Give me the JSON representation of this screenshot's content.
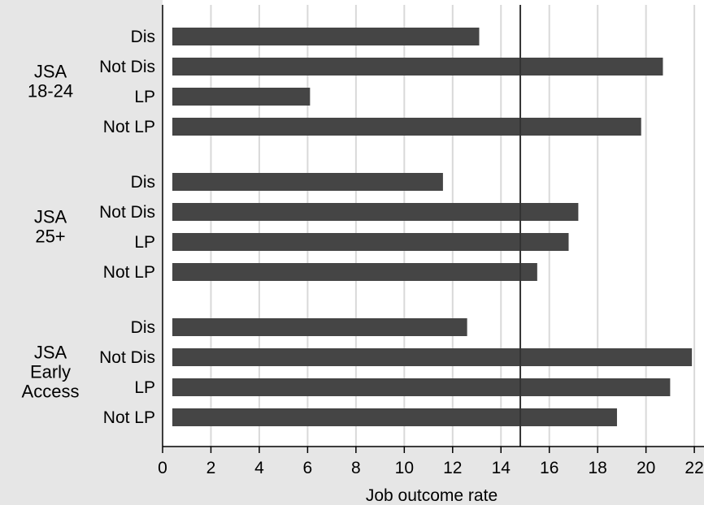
{
  "chart_data": {
    "type": "bar",
    "orientation": "horizontal",
    "title": "",
    "xlabel": "Job outcome rate",
    "ylabel": "",
    "xlim": [
      0,
      22.4
    ],
    "xticks": [
      0,
      2,
      4,
      6,
      8,
      10,
      12,
      14,
      16,
      18,
      20,
      22
    ],
    "grid": true,
    "reference_line": 14.8,
    "groups": [
      {
        "label_lines": [
          "JSA",
          "18-24"
        ],
        "bars": [
          {
            "label": "Dis",
            "value": 13.1
          },
          {
            "label": "Not Dis",
            "value": 20.7
          },
          {
            "label": "LP",
            "value": 6.1
          },
          {
            "label": "Not LP",
            "value": 19.8
          }
        ]
      },
      {
        "label_lines": [
          "JSA",
          "25+"
        ],
        "bars": [
          {
            "label": "Dis",
            "value": 11.6
          },
          {
            "label": "Not Dis",
            "value": 17.2
          },
          {
            "label": "LP",
            "value": 16.8
          },
          {
            "label": "Not LP",
            "value": 15.5
          }
        ]
      },
      {
        "label_lines": [
          "JSA",
          "Early",
          "Access"
        ],
        "bars": [
          {
            "label": "Dis",
            "value": 12.6
          },
          {
            "label": "Not Dis",
            "value": 21.9
          },
          {
            "label": "LP",
            "value": 21.0
          },
          {
            "label": "Not LP",
            "value": 18.8
          }
        ]
      }
    ],
    "colors": {
      "bar": "#454545",
      "reference_line": "#333333",
      "grid": "#d9d9d9",
      "label_panel": "#e6e6e6"
    }
  }
}
